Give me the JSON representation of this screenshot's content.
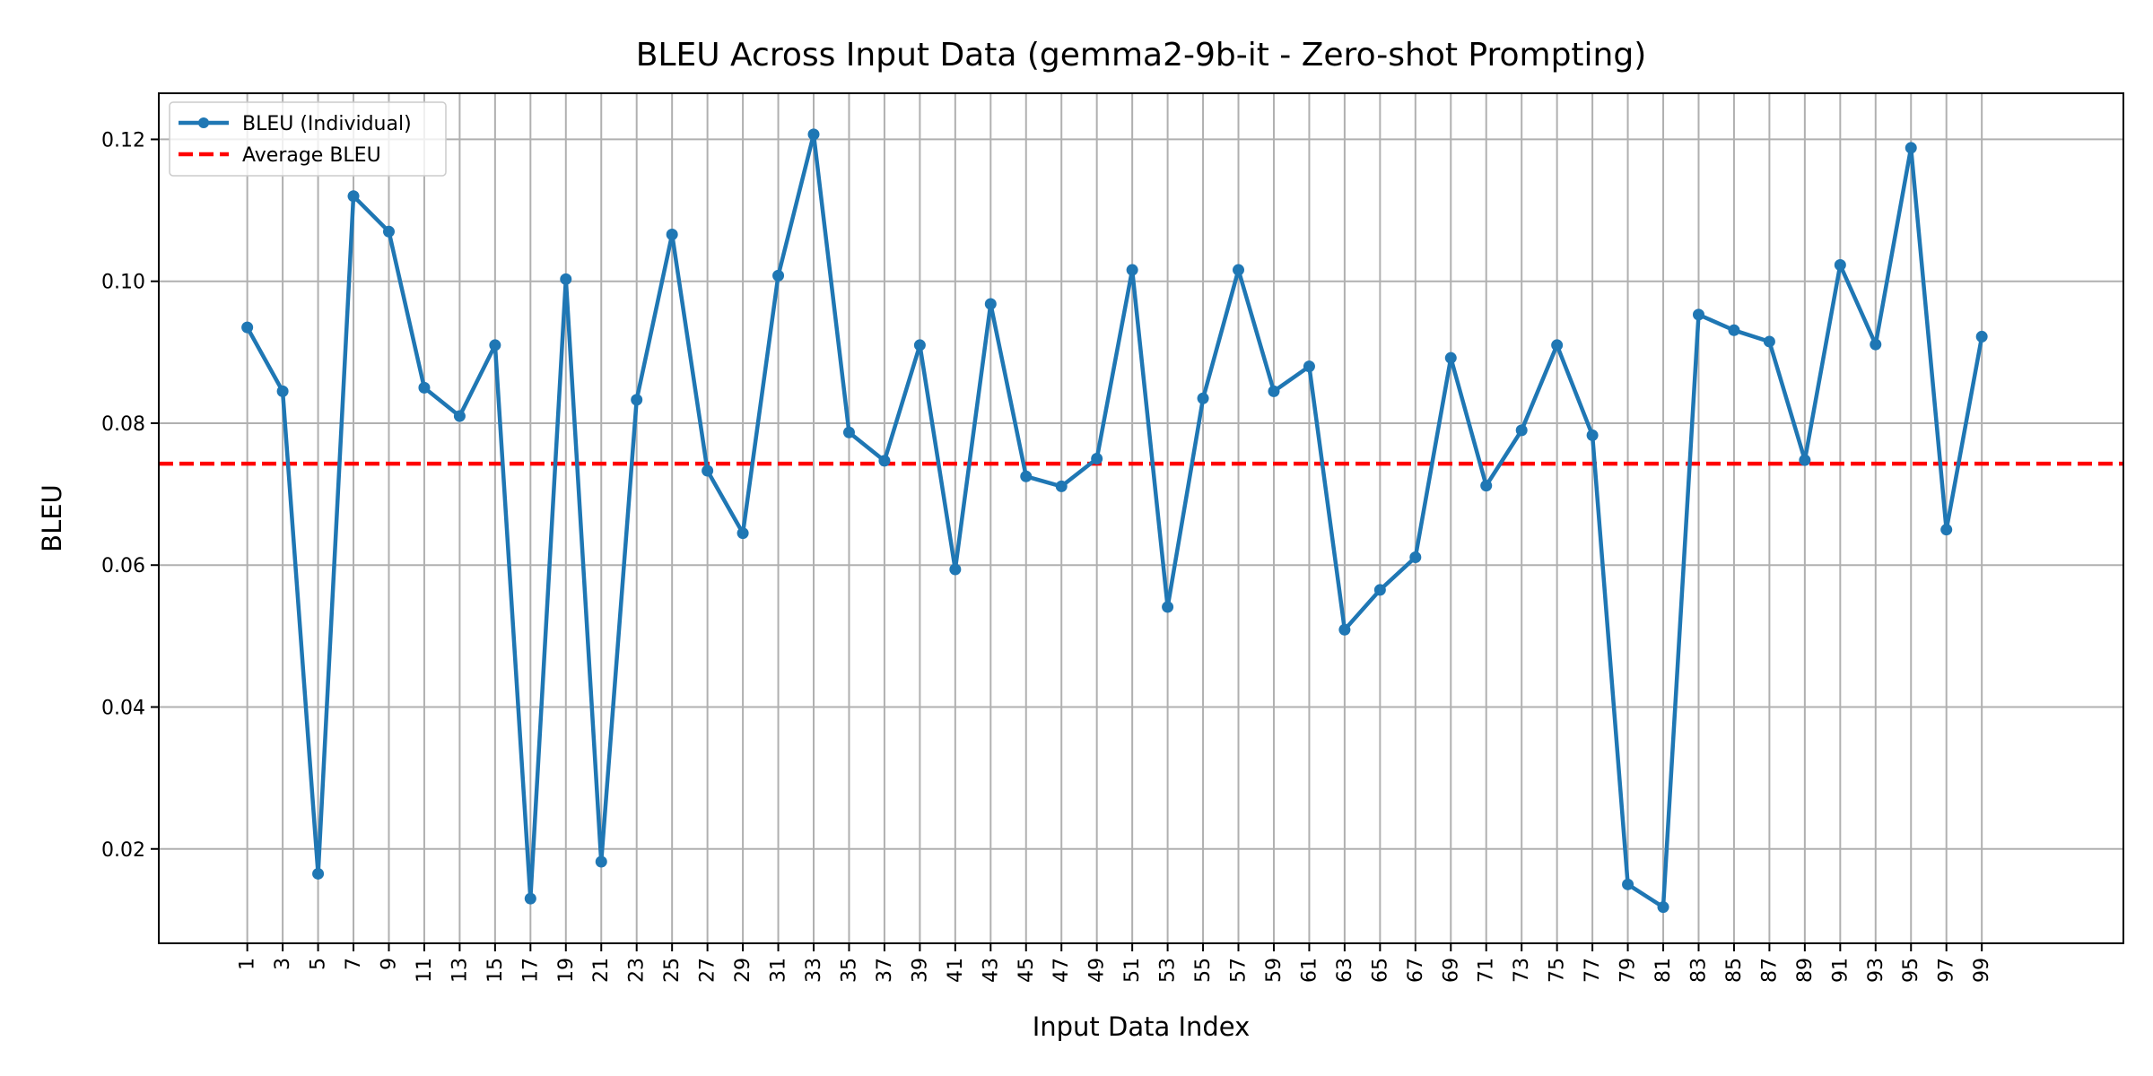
{
  "chart_data": {
    "type": "line",
    "title": "BLEU Across Input Data (gemma2-9b-it - Zero-shot Prompting)",
    "xlabel": "Input Data Index",
    "ylabel": "BLEU",
    "x": [
      1,
      3,
      5,
      7,
      9,
      11,
      13,
      15,
      17,
      19,
      21,
      23,
      25,
      27,
      29,
      31,
      33,
      35,
      37,
      39,
      41,
      43,
      45,
      47,
      49,
      51,
      53,
      55,
      57,
      59,
      61,
      63,
      65,
      67,
      69,
      71,
      73,
      75,
      77,
      79,
      81,
      83,
      85,
      87,
      89,
      91,
      93,
      95,
      97,
      99
    ],
    "x_tick_labels": [
      "1",
      "3",
      "5",
      "7",
      "9",
      "11",
      "13",
      "15",
      "17",
      "19",
      "21",
      "23",
      "25",
      "27",
      "29",
      "31",
      "33",
      "35",
      "37",
      "39",
      "41",
      "43",
      "45",
      "47",
      "49",
      "51",
      "53",
      "55",
      "57",
      "59",
      "61",
      "63",
      "65",
      "67",
      "69",
      "71",
      "73",
      "75",
      "77",
      "79",
      "81",
      "83",
      "85",
      "87",
      "89",
      "91",
      "93",
      "95",
      "97",
      "99"
    ],
    "xlim": [
      -4,
      107
    ],
    "ylim": [
      0.0067,
      0.1265
    ],
    "y_ticks": [
      0.02,
      0.04,
      0.06,
      0.08,
      0.1,
      0.12
    ],
    "y_tick_labels": [
      "0.02",
      "0.04",
      "0.06",
      "0.08",
      "0.10",
      "0.12"
    ],
    "grid": true,
    "legend_position": "top-left",
    "series": [
      {
        "name": "BLEU (Individual)",
        "color": "#1f77b4",
        "style": "solid-with-markers",
        "values": [
          0.0935,
          0.0845,
          0.0165,
          0.112,
          0.107,
          0.085,
          0.081,
          0.091,
          0.013,
          0.1003,
          0.0182,
          0.0833,
          0.1066,
          0.0733,
          0.0645,
          0.1008,
          0.1207,
          0.0787,
          0.0747,
          0.091,
          0.0594,
          0.0968,
          0.0725,
          0.0711,
          0.075,
          0.1016,
          0.0541,
          0.0835,
          0.1016,
          0.0845,
          0.088,
          0.0509,
          0.0565,
          0.0611,
          0.0892,
          0.0712,
          0.079,
          0.091,
          0.0783,
          0.015,
          0.0118,
          0.0953,
          0.0931,
          0.0915,
          0.0748,
          0.1023,
          0.0911,
          0.1188,
          0.065,
          0.0922
        ]
      },
      {
        "name": "Average BLEU",
        "color": "#ff0000",
        "style": "dashed",
        "value": 0.0743
      }
    ]
  }
}
